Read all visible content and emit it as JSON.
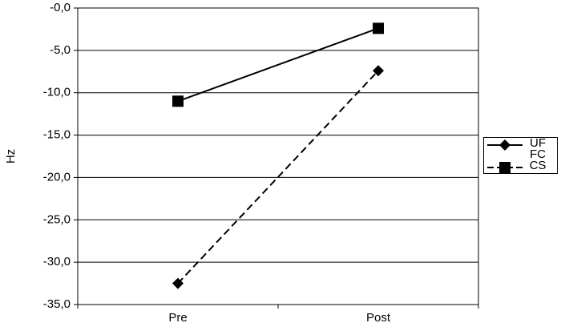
{
  "chart_data": {
    "type": "line",
    "y_label": "Hz",
    "categories": [
      "Pre",
      "Post"
    ],
    "series": [
      {
        "name": "UF FC",
        "color": "#000000",
        "dash": "solid",
        "marker": "square",
        "legend_marker": "diamond",
        "values": [
          -11,
          -2.4
        ]
      },
      {
        "name": "CS",
        "color": "#000000",
        "dash": "dashed",
        "marker": "diamond",
        "legend_marker": "square",
        "values": [
          -32.5,
          -7.4
        ]
      }
    ],
    "ylim": [
      -35,
      0
    ],
    "yticks": [
      {
        "value": 0,
        "label": "-0,0"
      },
      {
        "value": -5,
        "label": "-5,0"
      },
      {
        "value": -10,
        "label": "-10,0"
      },
      {
        "value": -15,
        "label": "-15,0"
      },
      {
        "value": -20,
        "label": "-20,0"
      },
      {
        "value": -25,
        "label": "-25,0"
      },
      {
        "value": -30,
        "label": "-30,0"
      },
      {
        "value": -35,
        "label": "-35,0"
      }
    ],
    "grid": true,
    "legend": "right"
  }
}
